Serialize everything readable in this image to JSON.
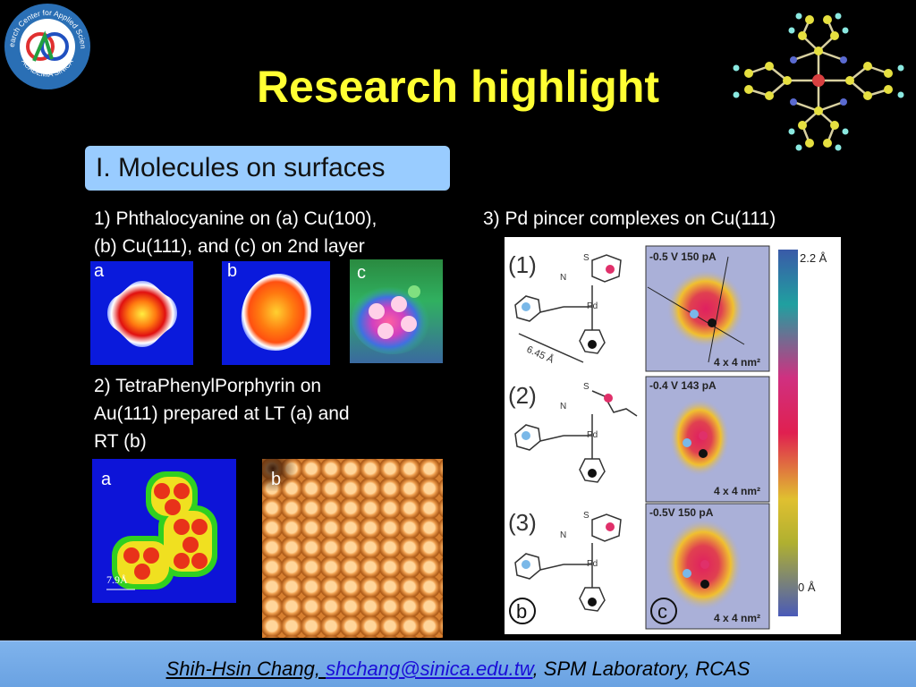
{
  "logo": {
    "text_top": "Research Center for Applied Sciences",
    "text_bottom": "ACADEMIA SINICA"
  },
  "title": "Research highlight",
  "section": {
    "label": "I. Molecules on surfaces"
  },
  "item1": {
    "line1": "1) Phthalocyanine on (a) Cu(100),",
    "line2": "(b) Cu(111), and (c) on 2nd layer",
    "labels": [
      "a",
      "b",
      "c"
    ]
  },
  "item2": {
    "line1": "2) TetraPhenylPorphyrin on",
    "line2": "Au(111) prepared at LT (a) and",
    "line3": "RT (b)",
    "labels": [
      "a",
      "b"
    ],
    "scale_label": "7.9Å"
  },
  "item3": {
    "heading": "3) Pd pincer complexes on Cu(111)",
    "rows": [
      {
        "num": "(1)",
        "scan": "-0.5 V  150 pA",
        "size": "4 x 4 nm²"
      },
      {
        "num": "(2)",
        "scan": "-0.4 V  143 pA",
        "size": "4 x 4 nm²"
      },
      {
        "num": "(3)",
        "scan": "-0.5V  150 pA",
        "size": "4 x 4 nm²"
      }
    ],
    "distance": "6.45 Å",
    "pd": "Pd",
    "n": "N",
    "s": "S",
    "panel_b": "b",
    "panel_c": "c",
    "scale_max": "2.2 Å",
    "scale_min": "0 Å"
  },
  "footer": {
    "author": "Shih-Hsin Chang, ",
    "email": "shchang@sinica.edu.tw",
    "rest": ", SPM Laboratory, RCAS"
  }
}
